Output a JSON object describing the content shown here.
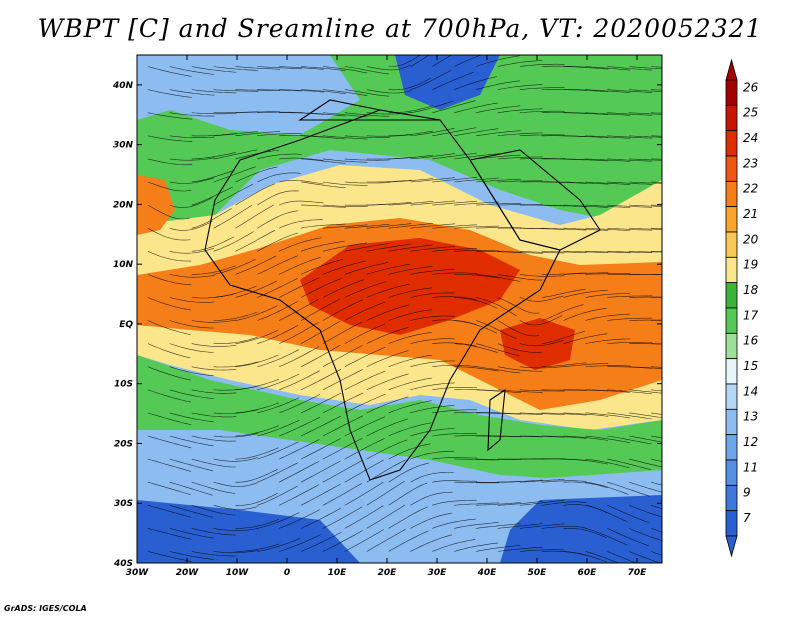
{
  "title": "WBPT [C] and Sreamline at 700hPa, VT: 2020052321",
  "credit": "GrADS: IGES/COLA",
  "map": {
    "lon_range": [
      -30,
      75
    ],
    "lat_range": [
      -40,
      45
    ],
    "lon_tick_labels": [
      "30W",
      "20W",
      "10W",
      "0",
      "10E",
      "20E",
      "30E",
      "40E",
      "50E",
      "60E",
      "70E"
    ],
    "lat_tick_labels": [
      "40N",
      "30N",
      "20N",
      "10N",
      "EQ",
      "10S",
      "20S",
      "30S",
      "40S"
    ]
  },
  "colorbar": {
    "labels": [
      "26",
      "25",
      "24",
      "23",
      "22",
      "21",
      "20",
      "19",
      "18",
      "17",
      "16",
      "15",
      "14",
      "13",
      "12",
      "11",
      "9",
      "7"
    ],
    "colors": [
      "#a50000",
      "#c81400",
      "#e02d00",
      "#f05514",
      "#f57e19",
      "#f9a52c",
      "#fac857",
      "#fce68c",
      "#3cb43c",
      "#55c955",
      "#9ee09a",
      "#e6f5fa",
      "#b4d7f5",
      "#8cbcf0",
      "#6ea6ea",
      "#5590e4",
      "#3d78dc",
      "#2a5fd2"
    ]
  },
  "legend": {
    "wbpt_colors": {
      "cold": "#2a5fd2",
      "cool": "#8cbcf0",
      "mild": "#55c955",
      "warm": "#fce68c",
      "hot": "#f57e19",
      "hottest": "#e02d00"
    }
  }
}
